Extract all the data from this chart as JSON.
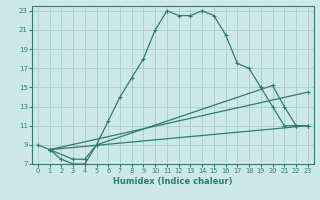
{
  "xlabel": "Humidex (Indice chaleur)",
  "ylabel": "",
  "bg_color": "#cce8e8",
  "grid_color": "#aacccc",
  "line_color": "#2e7d6e",
  "xlim": [
    -0.5,
    23.5
  ],
  "ylim": [
    7,
    23.5
  ],
  "xticks": [
    0,
    1,
    2,
    3,
    4,
    5,
    6,
    7,
    8,
    9,
    10,
    11,
    12,
    13,
    14,
    15,
    16,
    17,
    18,
    19,
    20,
    21,
    22,
    23
  ],
  "yticks": [
    7,
    9,
    11,
    13,
    15,
    17,
    19,
    21,
    23
  ],
  "series": [
    {
      "x": [
        0,
        1,
        2,
        3,
        4,
        5,
        6,
        7,
        8,
        9,
        10,
        11,
        12,
        13,
        14,
        15,
        16,
        17,
        18,
        19,
        20,
        21,
        22,
        23
      ],
      "y": [
        9,
        8.5,
        7.5,
        7,
        7,
        9,
        11.5,
        14,
        16,
        18,
        21,
        23,
        22.5,
        22.5,
        23,
        22.5,
        20.5,
        17.5,
        17,
        15,
        13,
        11,
        11,
        11
      ]
    },
    {
      "x": [
        1,
        3,
        4,
        5,
        20,
        21,
        22,
        23
      ],
      "y": [
        8.5,
        7.5,
        7.5,
        9,
        15.2,
        13,
        11,
        11
      ]
    },
    {
      "x": [
        1,
        23
      ],
      "y": [
        8.5,
        14.5
      ]
    },
    {
      "x": [
        1,
        23
      ],
      "y": [
        8.5,
        11
      ]
    }
  ]
}
